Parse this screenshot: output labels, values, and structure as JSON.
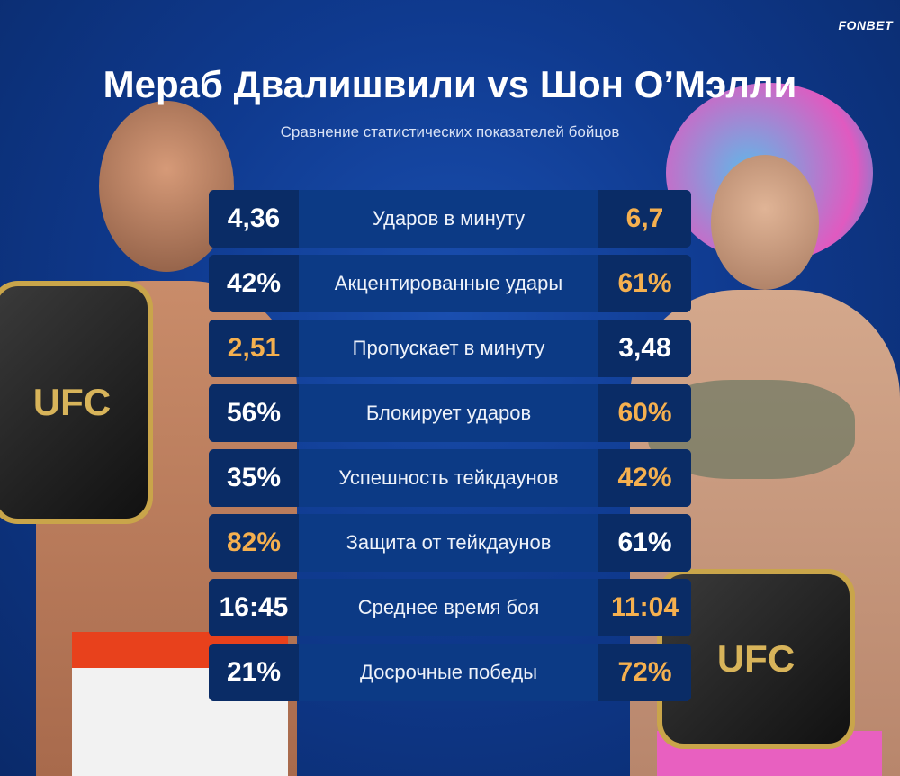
{
  "brand": "FONBET",
  "title": "Мераб Двалишвили vs Шон О’Мэлли",
  "subtitle": "Сравнение статистических показателей бойцов",
  "highlight_color": "#f5b04f",
  "belt_text": "UFC",
  "rows": [
    {
      "left": "4,36",
      "label": "Ударов в минуту",
      "right": "6,7",
      "winner": "right"
    },
    {
      "left": "42%",
      "label": "Акцентированные удары",
      "right": "61%",
      "winner": "right"
    },
    {
      "left": "2,51",
      "label": "Пропускает в минуту",
      "right": "3,48",
      "winner": "left"
    },
    {
      "left": "56%",
      "label": "Блокирует ударов",
      "right": "60%",
      "winner": "right"
    },
    {
      "left": "35%",
      "label": "Успешность тейкдаунов",
      "right": "42%",
      "winner": "right"
    },
    {
      "left": "82%",
      "label": "Защита от тейкдаунов",
      "right": "61%",
      "winner": "left"
    },
    {
      "left": "16:45",
      "label": "Среднее время боя",
      "right": "11:04",
      "winner": "right"
    },
    {
      "left": "21%",
      "label": "Досрочные победы",
      "right": "72%",
      "winner": "right"
    }
  ]
}
